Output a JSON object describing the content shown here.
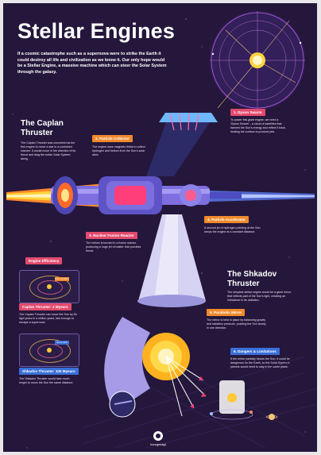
{
  "title": "Stellar Engines",
  "intro": "If a cosmic catastrophe such as a supernova were to strike the Earth it could destroy all life and civilization as we know it. Our only hope would be a Stellar Engine, a massive machine which can steer the Solar System through the galaxy.",
  "caplan": {
    "title": "The Caplan Thruster",
    "desc": "The Caplan Thruster was conceived as the first engine to move a star in a controlled manner. It would move in the direction of its thrust and drag the entire Solar System along.",
    "tags": {
      "dyson": "1. Dyson Swarm",
      "collector": "2. Particle Collector",
      "fusion": "3. Nuclear Fusion Reactor",
      "accelerator": "4. Particle Accelerator"
    },
    "texts": {
      "dyson": "To power this giant engine, we need a 'Dyson Swarm' - a cloud of satellites that harvest the Sun's energy and reflect it back, heating the surface to produce jets.",
      "collector": "The engine uses magnetic fields to collect hydrogen and helium from the Sun's solar wind.",
      "fusion": "The helium is burned in a fusion reactor, producing a huge jet of matter that provides thrust.",
      "accelerator": "A second jet of hydrogen pointing at the Sun keeps the engine at a constant distance."
    }
  },
  "efficiency": {
    "label": "Engine Efficiency",
    "caplan_title": "Caplan Thruster: 2 Myears",
    "caplan_text": "The Caplan Thruster can move the Sun by 50 light years in a million years, fast enough to escape a supernova.",
    "shkadov_title": "Shkadov Thruster: 100 Myears",
    "shkadov_text": "The Shkadov Thruster would take much longer to move the Sun the same distance.",
    "sun_label": "Sun's location",
    "orbit_label": "Sun's orbit"
  },
  "shkadov": {
    "title": "The Shkadov Thruster",
    "desc": "The simplest stellar engine would be a giant mirror that reflects part of the Sun's light, creating an imbalance in its radiation.",
    "tags": {
      "mirror": "5. Parabolic Mirror",
      "dangers": "6. Dangers & Limitations"
    },
    "texts": {
      "mirror": "The mirror is held in place by balancing gravity and radiation pressure, pushing the Sun slowly in one direction.",
      "dangers": "If the mirror partially blocks the Sun, it could be dangerous for the Earth, so the Solar System's planets would need to stay in the same plane."
    }
  },
  "logo": "kurzgesagt",
  "colors": {
    "background": "#24173b",
    "tag_pink": "#e24a6d",
    "tag_orange": "#f08a2c",
    "tag_blue": "#3a6fd8",
    "sun": "#ffc93a",
    "jet": "#ff6a2a"
  }
}
